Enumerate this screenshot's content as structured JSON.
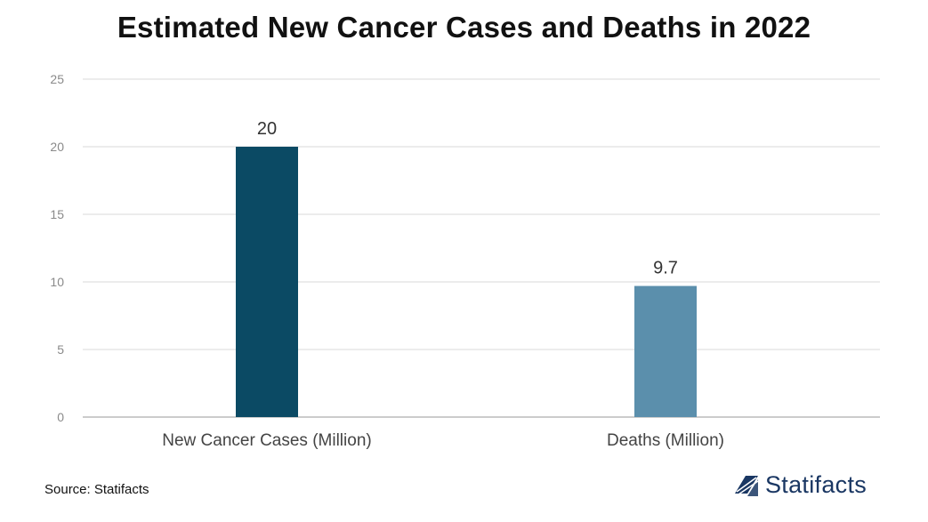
{
  "chart_data": {
    "type": "bar",
    "title": "Estimated New Cancer Cases and Deaths in 2022",
    "categories": [
      "New Cancer Cases (Million)",
      "Deaths (Million)"
    ],
    "values": [
      20,
      9.7
    ],
    "data_labels": [
      "20",
      "9.7"
    ],
    "bar_colors": [
      "#0b4a64",
      "#5b8fac"
    ],
    "ylim": [
      0,
      25
    ],
    "yticks": [
      0,
      5,
      10,
      15,
      20,
      25
    ],
    "xlabel": "",
    "ylabel": "",
    "grid": true,
    "legend": "none"
  },
  "source": "Source: Statifacts",
  "logo": {
    "text": "Statifacts",
    "icon": "statifacts-logo-icon",
    "color": "#1a3763"
  }
}
